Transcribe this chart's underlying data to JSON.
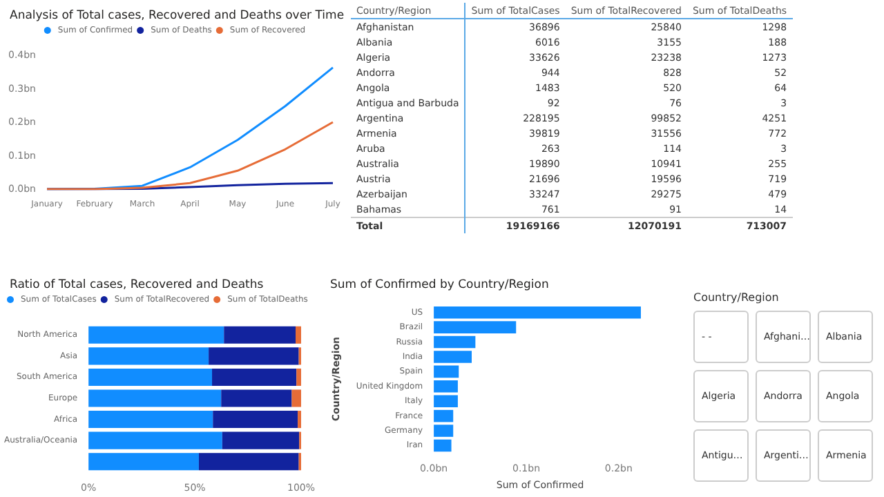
{
  "chart_data": [
    {
      "type": "line",
      "title": "Analysis of Total cases, Recovered and Deaths over Time",
      "categories": [
        "January",
        "February",
        "March",
        "April",
        "May",
        "June",
        "July"
      ],
      "series": [
        {
          "name": "Sum of Confirmed",
          "color": "#118dff",
          "values": [
            0,
            0.001,
            0.01,
            0.065,
            0.147,
            0.248,
            0.363
          ]
        },
        {
          "name": "Sum of Deaths",
          "color": "#12239e",
          "values": [
            0,
            0,
            0.001,
            0.006,
            0.012,
            0.016,
            0.018
          ]
        },
        {
          "name": "Sum of Recovered",
          "color": "#e66c37",
          "values": [
            0,
            0,
            0.004,
            0.018,
            0.055,
            0.119,
            0.2
          ]
        }
      ],
      "ylim": [
        0,
        0.4
      ],
      "yticks": [
        {
          "value": 0,
          "label": "0.0bn"
        },
        {
          "value": 0.1,
          "label": "0.1bn"
        },
        {
          "value": 0.2,
          "label": "0.2bn"
        },
        {
          "value": 0.3,
          "label": "0.3bn"
        },
        {
          "value": 0.4,
          "label": "0.4bn"
        }
      ],
      "legend": "top",
      "marker": "none",
      "grid": false
    },
    {
      "type": "other",
      "xlabel": "Country/Region",
      "categories": [
        "Afghanistan",
        "Albania",
        "Algeria",
        "Andorra",
        "Angola",
        "Antigua and Barbuda",
        "Argentina",
        "Armenia",
        "Aruba",
        "Australia",
        "Austria",
        "Azerbaijan",
        "Bahamas",
        "Total"
      ],
      "series": [
        {
          "name": "Sum of TotalCases",
          "color": "#333333",
          "values": [
            36896,
            6016,
            33626,
            944,
            1483,
            92,
            228195,
            39819,
            263,
            19890,
            21696,
            33247,
            761,
            19169166
          ]
        },
        {
          "name": "Sum of TotalRecovered",
          "color": "#333333",
          "values": [
            25840,
            3155,
            23238,
            828,
            520,
            76,
            99852,
            31556,
            114,
            10941,
            19596,
            29275,
            91,
            12070191
          ]
        },
        {
          "name": "Sum of TotalDeaths",
          "color": "#333333",
          "values": [
            1298,
            188,
            1273,
            52,
            64,
            3,
            4251,
            772,
            3,
            255,
            719,
            479,
            14,
            713007
          ]
        }
      ],
      "data_labels": true
    },
    {
      "type": "bar",
      "title": "Ratio of Total cases, Recovered and Deaths",
      "orientation": "horizontal",
      "stacked": true,
      "categories": [
        "North America",
        "Asia",
        "South America",
        "Europe",
        "Africa",
        "Australia/Oceania",
        null
      ],
      "series": [
        {
          "name": "Sum of TotalCases",
          "color": "#118dff",
          "values": [
            63.7,
            56.5,
            58.1,
            62.4,
            58.5,
            62.9,
            51.9
          ]
        },
        {
          "name": "Sum of TotalRecovered",
          "color": "#12239e",
          "values": [
            33.7,
            42.4,
            39.7,
            33.2,
            39.9,
            36.2,
            47
          ]
        },
        {
          "name": "Sum of TotalDeaths",
          "color": "#e66c37",
          "values": [
            2.6,
            1.1,
            2.2,
            4.4,
            1.6,
            0.9,
            1.1
          ]
        }
      ],
      "xlim": [
        0,
        100
      ],
      "xticks": [
        {
          "value": 0,
          "label": "0%"
        },
        {
          "value": 50,
          "label": "50%"
        },
        {
          "value": 100,
          "label": "100%"
        }
      ],
      "legend": "top left",
      "grid": false
    },
    {
      "type": "bar",
      "title": "Sum of Confirmed by Country/Region",
      "orientation": "horizontal",
      "xlabel": "Sum of Confirmed",
      "ylabel": "Country/Region",
      "categories": [
        "US",
        "Brazil",
        "Russia",
        "India",
        "Spain",
        "United Kingdom",
        "Italy",
        "France",
        "Germany",
        "Iran"
      ],
      "values": [
        0.224,
        0.089,
        0.045,
        0.041,
        0.027,
        0.026,
        0.026,
        0.021,
        0.021,
        0.019
      ],
      "color": "#118dff",
      "xlim": [
        0,
        0.23
      ],
      "xticks": [
        {
          "value": 0,
          "label": "0.0bn"
        },
        {
          "value": 0.1,
          "label": "0.1bn"
        },
        {
          "value": 0.2,
          "label": "0.2bn"
        }
      ],
      "grid": false,
      "legend": false
    },
    {
      "type": "other",
      "title": "Country/Region",
      "categories": [
        "- -",
        "Afghani…",
        "Albania",
        "Algeria",
        "Andorra",
        "Angola",
        "Antigu…",
        "Argenti…",
        "Armenia"
      ]
    }
  ]
}
